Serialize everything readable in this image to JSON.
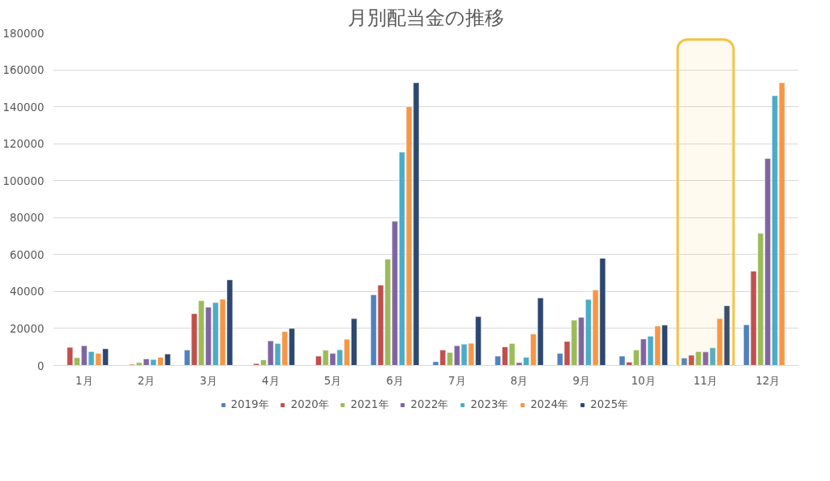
{
  "chart_data": {
    "type": "bar",
    "title": "月別配当金の推移",
    "categories": [
      "1月",
      "2月",
      "3月",
      "4月",
      "5月",
      "6月",
      "7月",
      "8月",
      "9月",
      "10月",
      "11月",
      "12月"
    ],
    "series": [
      {
        "name": "2019年",
        "color": "#4f81bd",
        "values": [
          null,
          null,
          8300,
          null,
          null,
          38200,
          2000,
          5000,
          6500,
          5000,
          4000,
          22000
        ]
      },
      {
        "name": "2020年",
        "color": "#c0504d",
        "values": [
          9800,
          600,
          28000,
          1000,
          5000,
          43500,
          8300,
          10000,
          13000,
          1800,
          5500,
          51000
        ]
      },
      {
        "name": "2021年",
        "color": "#9bbb59",
        "values": [
          4200,
          1500,
          35000,
          3000,
          8200,
          57500,
          7000,
          11800,
          24500,
          8300,
          7500,
          71500
        ]
      },
      {
        "name": "2022年",
        "color": "#8064a2",
        "values": [
          10700,
          3500,
          31500,
          13300,
          6500,
          78000,
          10700,
          1500,
          26000,
          14300,
          7300,
          112000
        ]
      },
      {
        "name": "2023年",
        "color": "#4bacc6",
        "values": [
          7500,
          3200,
          34000,
          11800,
          8500,
          115500,
          11500,
          4400,
          35700,
          15800,
          9500,
          146000
        ]
      },
      {
        "name": "2024年",
        "color": "#f79646",
        "values": [
          6500,
          4400,
          35800,
          18300,
          14200,
          140000,
          12000,
          17000,
          40800,
          21300,
          25300,
          153000
        ]
      },
      {
        "name": "2025年",
        "color": "#2c4770",
        "values": [
          9000,
          6200,
          46300,
          20000,
          25300,
          153000,
          26400,
          36500,
          58000,
          21800,
          32300,
          null
        ]
      }
    ],
    "ylim": [
      0,
      180000
    ],
    "yticks": [
      0,
      20000,
      40000,
      60000,
      80000,
      100000,
      120000,
      140000,
      160000,
      180000
    ],
    "grid": "y",
    "legend": "bottom",
    "bands": [
      {
        "axis": "x",
        "from": "11月",
        "to": "11月",
        "color": "#f5c242"
      }
    ]
  }
}
